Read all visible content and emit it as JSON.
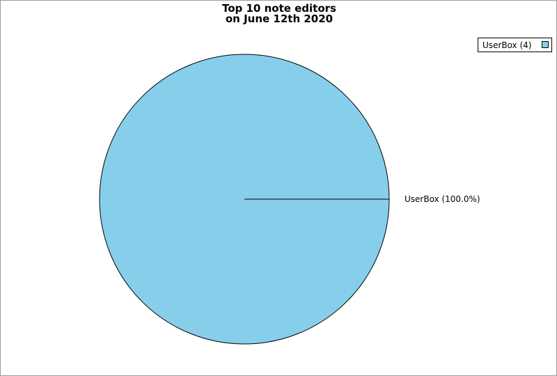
{
  "chart_data": {
    "type": "pie",
    "title": [
      "Top 10 note editors",
      "on June 12th 2020"
    ],
    "slices": [
      {
        "name": "UserBox",
        "value": 4,
        "percent_label": "UserBox (100.0%)",
        "legend_label": "UserBox (4)",
        "color": "#87ceeb"
      }
    ],
    "legend_placement": "top-right"
  }
}
